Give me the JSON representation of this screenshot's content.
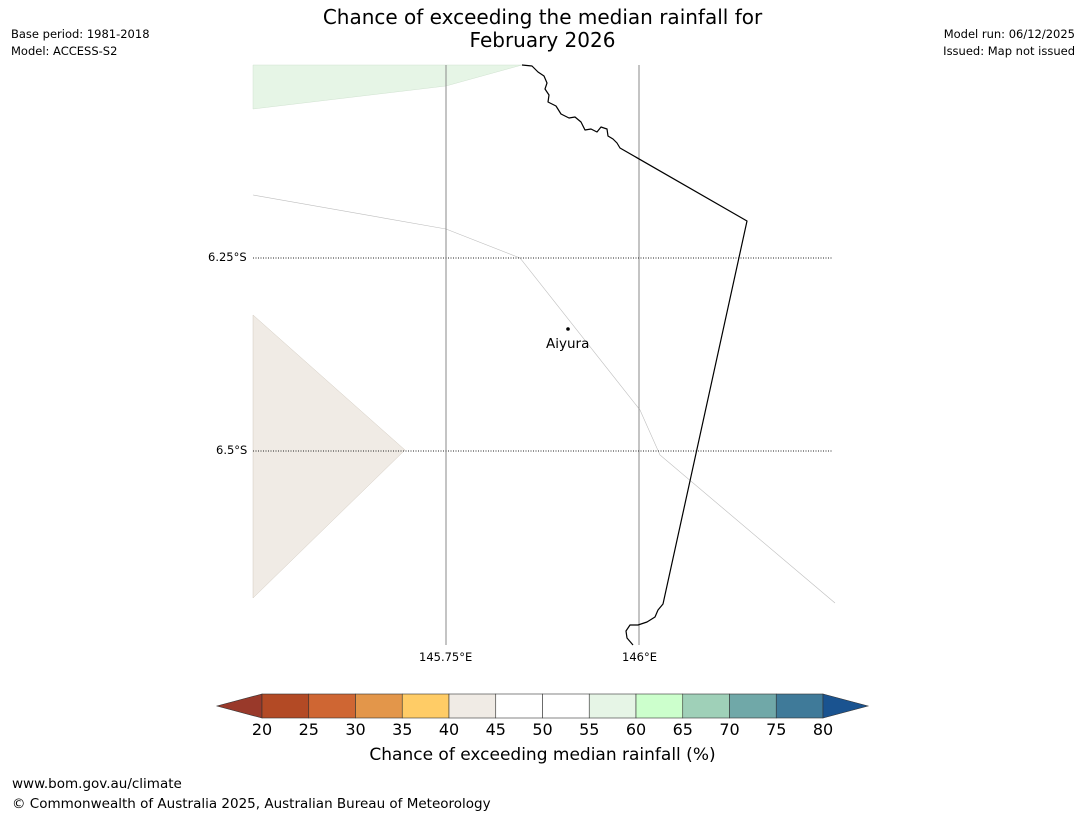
{
  "title": {
    "line1": "Chance of exceeding the median rainfall for",
    "line2": "February 2026"
  },
  "meta_left": {
    "base_period": "Base period: 1981-2018",
    "model": "Model: ACCESS-S2"
  },
  "meta_right": {
    "model_run": "Model run: 06/12/2025",
    "issued": "Issued: Map not issued"
  },
  "map": {
    "place": "Aiyura",
    "lat_labels": [
      "6.25°S",
      "6.5°S"
    ],
    "lon_labels": [
      "145.75°E",
      "146°E"
    ]
  },
  "colorbar": {
    "title": "Chance of exceeding median rainfall (%)",
    "tick_labels": [
      "20",
      "25",
      "30",
      "35",
      "40",
      "45",
      "50",
      "55",
      "60",
      "65",
      "70",
      "75",
      "80"
    ],
    "bins": [
      {
        "range": "<20",
        "color": "#99392A"
      },
      {
        "range": "20-25",
        "color": "#B34A25"
      },
      {
        "range": "25-30",
        "color": "#CF6633"
      },
      {
        "range": "30-35",
        "color": "#E3964A"
      },
      {
        "range": "35-40",
        "color": "#FFCC66"
      },
      {
        "range": "40-45",
        "color": "#F0EBE5"
      },
      {
        "range": "45-50",
        "color": "#FFFFFF"
      },
      {
        "range": "50-55",
        "color": "#FFFFFF"
      },
      {
        "range": "55-60",
        "color": "#E6F5E6"
      },
      {
        "range": "60-65",
        "color": "#CCFFCC"
      },
      {
        "range": "65-70",
        "color": "#9FD0B8"
      },
      {
        "range": "70-75",
        "color": "#70A8A8"
      },
      {
        "range": "75-80",
        "color": "#3F7A99"
      },
      {
        "range": ">80",
        "color": "#1A5390"
      }
    ]
  },
  "footer": {
    "url": "www.bom.gov.au/climate",
    "copyright": "© Commonwealth of Australia 2025, Australian Bureau of Meteorology"
  }
}
